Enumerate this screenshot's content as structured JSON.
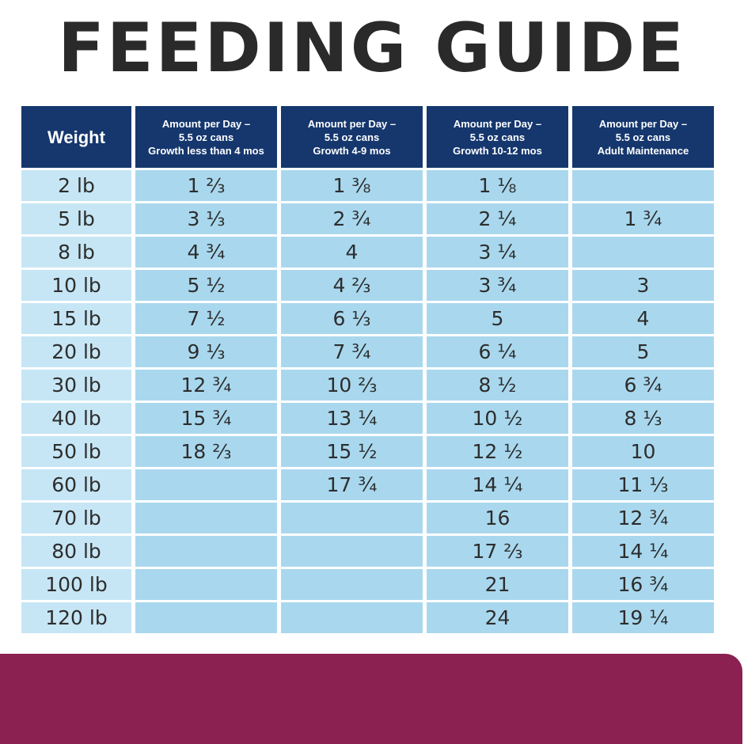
{
  "title": "FEEDING GUIDE",
  "colors": {
    "header": "#15376e",
    "cell": "#a9d8ee",
    "banner": "#8a2150",
    "title": "#2a2a2a"
  },
  "table": {
    "headers": [
      "Weight",
      "Amount per Day –\n5.5 oz cans\nGrowth less than 4 mos",
      "Amount per Day –\n5.5 oz cans\nGrowth 4-9 mos",
      "Amount per Day –\n5.5 oz cans\nGrowth 10-12 mos",
      "Amount per Day –\n5.5 oz cans\nAdult Maintenance"
    ],
    "rows": [
      [
        "2 lb",
        "1 ⅔",
        "1 ⅜",
        "1 ⅛",
        ""
      ],
      [
        "5 lb",
        "3 ⅓",
        "2 ¾",
        "2 ¼",
        "1 ¾"
      ],
      [
        "8 lb",
        "4 ¾",
        "4",
        "3 ¼",
        ""
      ],
      [
        "10 lb",
        "5 ½",
        "4 ⅔",
        "3 ¾",
        "3"
      ],
      [
        "15 lb",
        "7 ½",
        "6 ⅓",
        "5",
        "4"
      ],
      [
        "20 lb",
        "9 ⅓",
        "7 ¾",
        "6 ¼",
        "5"
      ],
      [
        "30 lb",
        "12 ¾",
        "10 ⅔",
        "8 ½",
        "6 ¾"
      ],
      [
        "40 lb",
        "15 ¾",
        "13 ¼",
        "10 ½",
        "8 ⅓"
      ],
      [
        "50 lb",
        "18 ⅔",
        "15 ½",
        "12 ½",
        "10"
      ],
      [
        "60 lb",
        "",
        "17 ¾",
        "14 ¼",
        "11 ⅓"
      ],
      [
        "70 lb",
        "",
        "",
        "16",
        "12 ¾"
      ],
      [
        "80 lb",
        "",
        "",
        "17 ⅔",
        "14 ¼"
      ],
      [
        "100 lb",
        "",
        "",
        "21",
        "16 ¾"
      ],
      [
        "120 lb",
        "",
        "",
        "24",
        "19 ¼"
      ]
    ]
  }
}
